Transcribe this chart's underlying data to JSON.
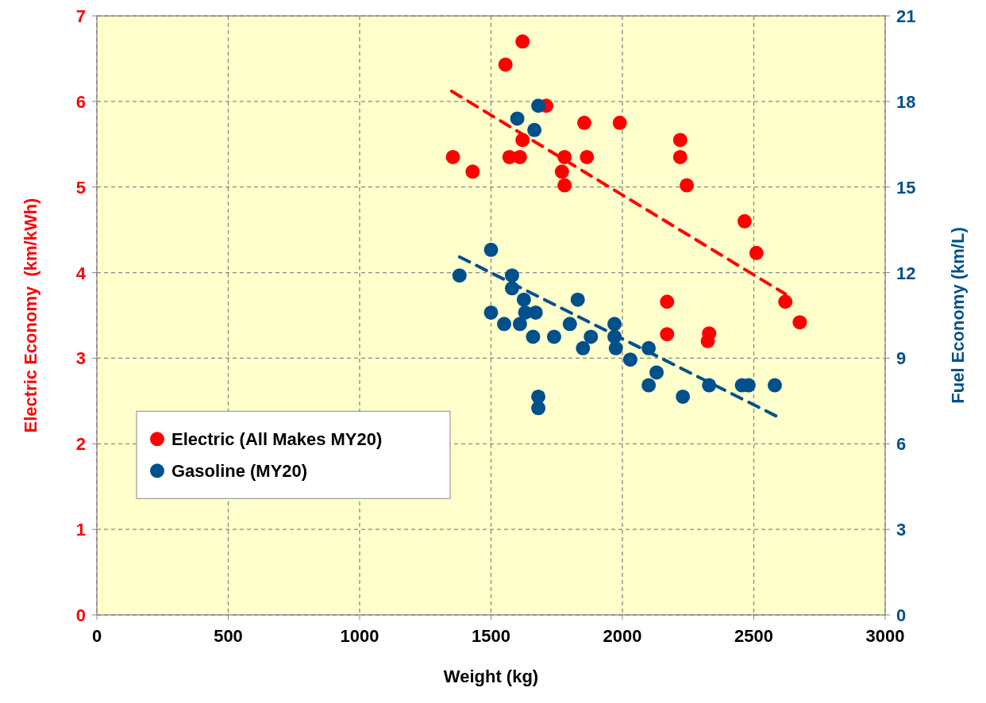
{
  "chart_data": {
    "type": "scatter",
    "xlabel": "Weight (kg)",
    "ylabel": "Electric Economy  (km/kWh)",
    "y2label": "Fuel Economy (km/L)",
    "xlim": [
      0,
      3000
    ],
    "xticks": [
      0,
      500,
      1000,
      1500,
      2000,
      2500,
      3000
    ],
    "ylim": [
      0,
      7
    ],
    "yticks": [
      0,
      1,
      2,
      3,
      4,
      5,
      6,
      7
    ],
    "y2lim": [
      0,
      21
    ],
    "y2ticks": [
      0,
      3,
      6,
      9,
      12,
      15,
      18,
      21
    ],
    "grid": true,
    "legend": "left",
    "marker": "circle",
    "series": [
      {
        "name": "Electric (All Makes MY20)",
        "color": "#ff0000",
        "x": [
          1355,
          1430,
          1555,
          1620,
          1570,
          1610,
          1620,
          1710,
          1770,
          1780,
          1780,
          1855,
          1865,
          1990,
          2220,
          2220,
          2245,
          2465,
          2510,
          2620,
          2675,
          2170,
          2170,
          2330,
          2325
        ],
        "values": [
          5.35,
          5.18,
          6.43,
          6.7,
          5.35,
          5.35,
          5.55,
          5.95,
          5.18,
          5.35,
          5.02,
          5.75,
          5.35,
          5.75,
          5.55,
          5.35,
          5.02,
          4.6,
          4.23,
          3.66,
          3.42,
          3.66,
          3.28,
          3.29,
          3.2
        ]
      },
      {
        "name": "Gasoline (MY20)",
        "color": "#00508c",
        "axis": "y2",
        "x": [
          1380,
          1500,
          1500,
          1550,
          1580,
          1580,
          1610,
          1625,
          1630,
          1660,
          1670,
          1600,
          1665,
          1680,
          1680,
          1680,
          1740,
          1800,
          1830,
          1850,
          1880,
          1970,
          1970,
          1975,
          2030,
          2100,
          2100,
          2130,
          2230,
          2330,
          2455,
          2480,
          2580
        ],
        "values": [
          11.9,
          12.8,
          10.6,
          10.2,
          11.9,
          11.45,
          10.2,
          11.05,
          10.6,
          9.75,
          10.6,
          17.4,
          17.0,
          17.85,
          7.65,
          7.25,
          9.75,
          10.2,
          11.05,
          9.35,
          9.75,
          10.2,
          9.75,
          9.35,
          8.95,
          9.35,
          8.05,
          8.5,
          7.65,
          8.05,
          8.05,
          8.05,
          8.05
        ]
      },
      {
        "type": "line",
        "color": "#ff0000",
        "line_style": "dashed",
        "marker": "none",
        "x": [
          1350,
          2620
        ],
        "values": [
          6.12,
          3.75
        ]
      },
      {
        "type": "line",
        "color": "#00508c",
        "line_style": "dashed",
        "marker": "none",
        "axis": "y2",
        "x": [
          1380,
          2590
        ],
        "values": [
          12.55,
          6.95
        ]
      }
    ]
  }
}
